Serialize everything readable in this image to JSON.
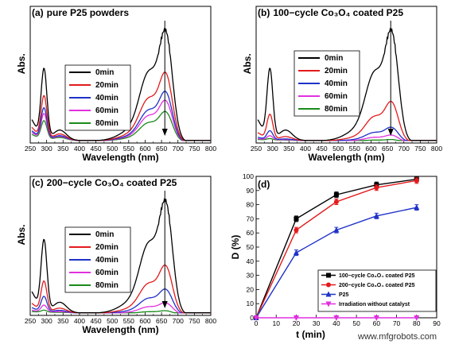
{
  "chart_data": [
    {
      "type": "line",
      "panel": "(a)",
      "title": "pure P25 powders",
      "xlabel": "Wavelength (nm)",
      "ylabel": "Abs.",
      "xlim": [
        250,
        800
      ],
      "xticks": [
        "250",
        "300",
        "350",
        "400",
        "450",
        "500",
        "550",
        "600",
        "650",
        "700",
        "750",
        "800"
      ],
      "y_tick_labels": false,
      "legend_position": "center",
      "annotation": "downward arrow at about 660 nm",
      "series": [
        {
          "name": "0min",
          "color": "#000000",
          "scale": 1.0
        },
        {
          "name": "20min",
          "color": "#e41a1c",
          "scale": 0.62
        },
        {
          "name": "40min",
          "color": "#1f32c8",
          "scale": 0.45
        },
        {
          "name": "60min",
          "color": "#e030e0",
          "scale": 0.37
        },
        {
          "name": "80min",
          "color": "#1a8a1a",
          "scale": 0.27
        }
      ]
    },
    {
      "type": "line",
      "panel": "(b)",
      "title": "100−cycle Co₃O₄ coated P25",
      "xlabel": "Wavelength (nm)",
      "ylabel": "Abs.",
      "xlim": [
        250,
        800
      ],
      "xticks": [
        "250",
        "300",
        "350",
        "400",
        "450",
        "500",
        "550",
        "600",
        "650",
        "700",
        "750",
        "800"
      ],
      "y_tick_labels": false,
      "legend_position": "center",
      "annotation": "downward arrow at about 660 nm",
      "series": [
        {
          "name": "0min",
          "color": "#000000",
          "scale": 1.0
        },
        {
          "name": "20min",
          "color": "#e41a1c",
          "scale": 0.36
        },
        {
          "name": "40min",
          "color": "#1f32c8",
          "scale": 0.13
        },
        {
          "name": "60min",
          "color": "#e030e0",
          "scale": 0.06
        },
        {
          "name": "80min",
          "color": "#1a8a1a",
          "scale": 0.02
        }
      ]
    },
    {
      "type": "line",
      "panel": "(c)",
      "title": "200−cycle Co₃O₄ coated P25",
      "xlabel": "Wavelength (nm)",
      "ylabel": "Abs.",
      "xlim": [
        250,
        800
      ],
      "xticks": [
        "250",
        "300",
        "350",
        "400",
        "450",
        "500",
        "550",
        "600",
        "650",
        "700",
        "750",
        "800"
      ],
      "y_tick_labels": false,
      "legend_position": "center",
      "annotation": "downward arrow at about 660 nm",
      "series": [
        {
          "name": "0min",
          "color": "#000000",
          "scale": 1.0
        },
        {
          "name": "20min",
          "color": "#e41a1c",
          "scale": 0.43
        },
        {
          "name": "40min",
          "color": "#1f32c8",
          "scale": 0.22
        },
        {
          "name": "60min",
          "color": "#e030e0",
          "scale": 0.1
        },
        {
          "name": "80min",
          "color": "#1a8a1a",
          "scale": 0.03
        }
      ]
    },
    {
      "type": "line",
      "panel": "(d)",
      "title": "",
      "xlabel": "t (min)",
      "ylabel": "D (%)",
      "xlim": [
        0,
        90
      ],
      "ylim": [
        0,
        100
      ],
      "x": [
        0,
        20,
        40,
        60,
        80
      ],
      "xticks": [
        "0",
        "10",
        "20",
        "30",
        "40",
        "50",
        "60",
        "70",
        "80",
        "90"
      ],
      "yticks": [
        "0",
        "10",
        "20",
        "30",
        "40",
        "50",
        "60",
        "70",
        "80",
        "90",
        "100"
      ],
      "legend_position": "bottom-right",
      "series": [
        {
          "name": "100−cycle Co₃O₄ coated P25",
          "color": "#000000",
          "marker": "square",
          "values": [
            0,
            70,
            87,
            94,
            98
          ]
        },
        {
          "name": "200−cycle Co₃O₄ coated P25",
          "color": "#e41a1c",
          "marker": "circle",
          "values": [
            0,
            62,
            82,
            92,
            97
          ]
        },
        {
          "name": "P25",
          "color": "#1f32c8",
          "marker": "triangle",
          "values": [
            0,
            46,
            62,
            72,
            78
          ]
        },
        {
          "name": "Irradiation without catalyst",
          "color": "#e030e0",
          "marker": "triangle-down",
          "values": [
            0,
            0,
            0,
            0,
            0
          ]
        }
      ]
    }
  ],
  "watermark": "www.mfgrobots.com"
}
